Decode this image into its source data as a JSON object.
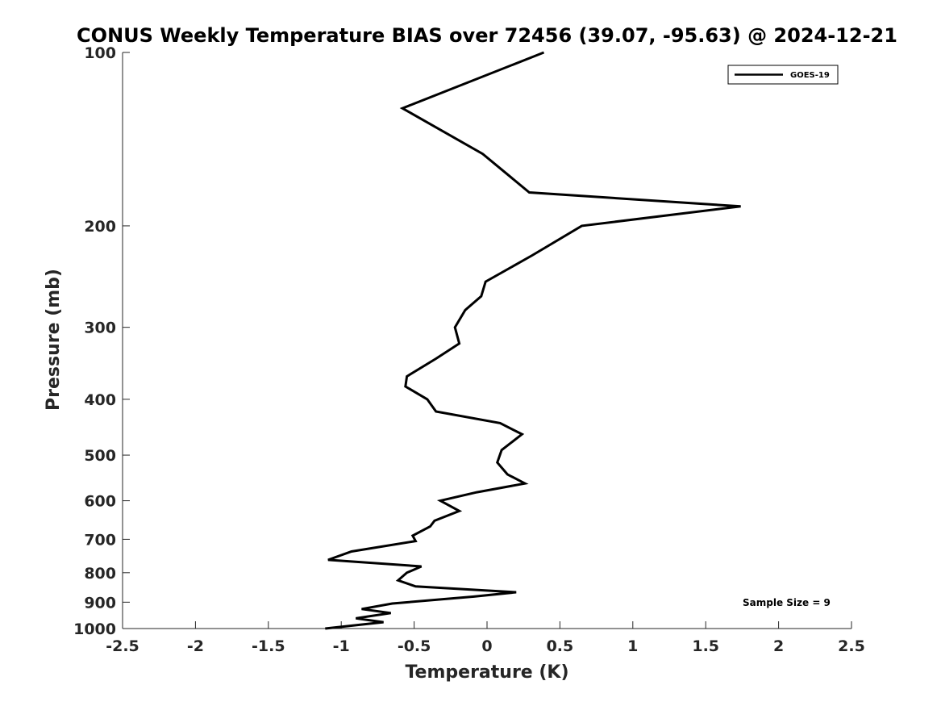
{
  "chart_data": {
    "type": "line",
    "title": "CONUS Weekly Temperature BIAS over 72456 (39.07, -95.63) @ 2024-12-21",
    "xlabel": "Temperature (K)",
    "ylabel": "Pressure (mb)",
    "xlim": [
      -2.5,
      2.5
    ],
    "ylim": [
      100,
      1000
    ],
    "yscale": "log",
    "y_reversed": true,
    "x_ticks": [
      "-2.5",
      "-2",
      "-1.5",
      "-1",
      "-0.5",
      "0",
      "0.5",
      "1",
      "1.5",
      "2",
      "2.5"
    ],
    "y_ticks": [
      "100",
      "200",
      "300",
      "400",
      "500",
      "600",
      "700",
      "800",
      "900",
      "1000"
    ],
    "grid": false,
    "legend_position": "top-right",
    "series": [
      {
        "name": "GOES-19",
        "color": "#000000",
        "points": [
          {
            "x": 0.39,
            "y": 100
          },
          {
            "x": -0.58,
            "y": 125
          },
          {
            "x": -0.03,
            "y": 150
          },
          {
            "x": 0.29,
            "y": 175
          },
          {
            "x": 1.74,
            "y": 185
          },
          {
            "x": 0.65,
            "y": 200
          },
          {
            "x": 0.31,
            "y": 225
          },
          {
            "x": -0.01,
            "y": 250
          },
          {
            "x": -0.04,
            "y": 265
          },
          {
            "x": -0.15,
            "y": 280
          },
          {
            "x": -0.22,
            "y": 300
          },
          {
            "x": -0.19,
            "y": 320
          },
          {
            "x": -0.35,
            "y": 340
          },
          {
            "x": -0.55,
            "y": 365
          },
          {
            "x": -0.56,
            "y": 380
          },
          {
            "x": -0.41,
            "y": 400
          },
          {
            "x": -0.35,
            "y": 420
          },
          {
            "x": 0.09,
            "y": 440
          },
          {
            "x": 0.24,
            "y": 460
          },
          {
            "x": 0.1,
            "y": 490
          },
          {
            "x": 0.07,
            "y": 515
          },
          {
            "x": 0.14,
            "y": 540
          },
          {
            "x": 0.26,
            "y": 560
          },
          {
            "x": -0.07,
            "y": 580
          },
          {
            "x": -0.32,
            "y": 600
          },
          {
            "x": -0.19,
            "y": 625
          },
          {
            "x": -0.36,
            "y": 650
          },
          {
            "x": -0.39,
            "y": 665
          },
          {
            "x": -0.51,
            "y": 690
          },
          {
            "x": -0.49,
            "y": 705
          },
          {
            "x": -0.93,
            "y": 735
          },
          {
            "x": -1.09,
            "y": 760
          },
          {
            "x": -0.45,
            "y": 780
          },
          {
            "x": -0.55,
            "y": 800
          },
          {
            "x": -0.61,
            "y": 825
          },
          {
            "x": -0.49,
            "y": 845
          },
          {
            "x": 0.2,
            "y": 865
          },
          {
            "x": -0.09,
            "y": 880
          },
          {
            "x": -0.65,
            "y": 905
          },
          {
            "x": -0.86,
            "y": 925
          },
          {
            "x": -0.66,
            "y": 940
          },
          {
            "x": -0.9,
            "y": 960
          },
          {
            "x": -0.71,
            "y": 975
          },
          {
            "x": -1.11,
            "y": 1000
          }
        ]
      }
    ],
    "annotations": [
      "Sample Size = 9"
    ]
  }
}
